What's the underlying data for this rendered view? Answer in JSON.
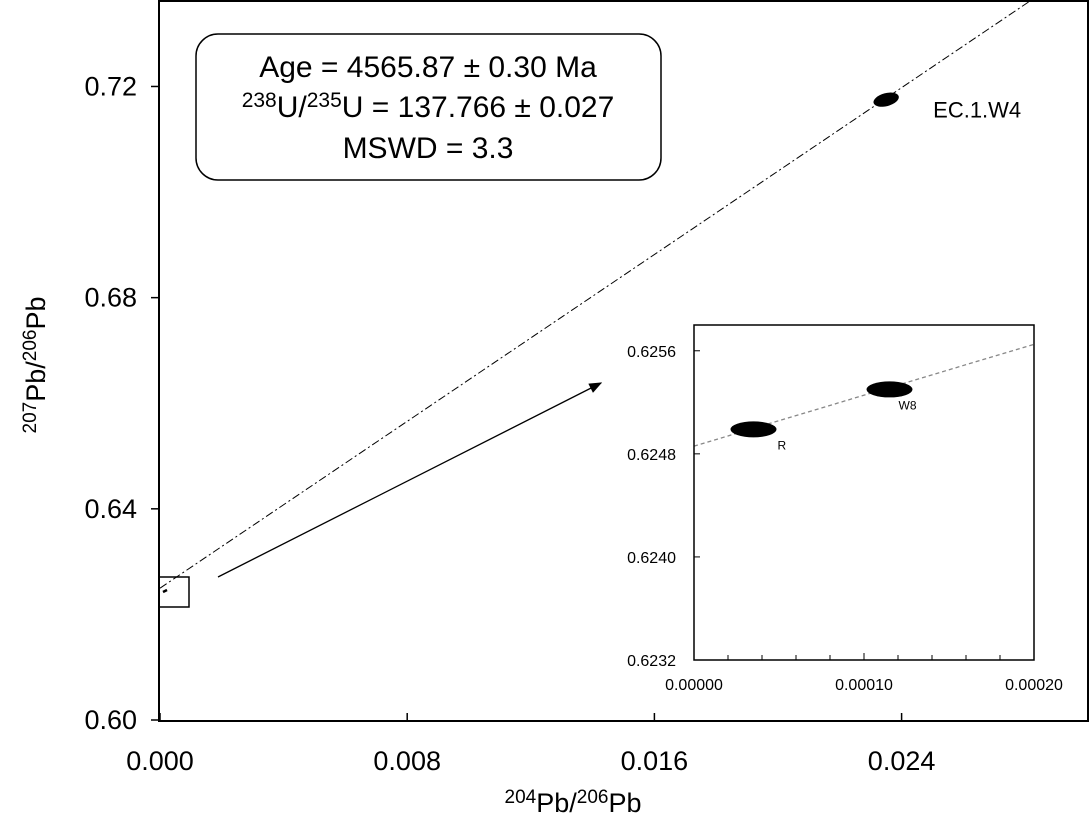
{
  "chart_data": [
    {
      "type": "scatter",
      "title": "",
      "xlabel": "²⁰⁴Pb/²⁰⁶Pb",
      "ylabel": "²⁰⁷Pb/²⁰⁶Pb",
      "xlim": [
        0.0,
        0.03
      ],
      "ylim": [
        0.6,
        0.736
      ],
      "xticks": [
        0.0,
        0.008,
        0.016,
        0.024
      ],
      "xtick_labels": [
        "0.000",
        "0.008",
        "0.016",
        "0.024"
      ],
      "yticks": [
        0.6,
        0.64,
        0.68,
        0.72
      ],
      "ytick_labels": [
        "0.60",
        "0.64",
        "0.68",
        "0.72"
      ],
      "points": [
        {
          "label": "EC.1.W4",
          "x": 0.0235,
          "y": 0.7175
        }
      ],
      "isochron": {
        "intercept": 0.62497,
        "slope": 3.95,
        "style": "dash-dot"
      },
      "annotation": {
        "age": "Age = 4565.87 ± 0.30 Ma",
        "ratio_sup1": "238",
        "ratio_mid": "U/",
        "ratio_sup2": "235",
        "ratio_tail": "U = 137.766 ± 0.027",
        "mswd": "MSWD = 3.3"
      },
      "axis_titles": {
        "x_sup1": "204",
        "x_mid": "Pb/",
        "x_sup2": "206",
        "x_tail": "Pb",
        "y_sup1": "207",
        "y_mid": "Pb/",
        "y_sup2": "206",
        "y_tail": "Pb"
      },
      "grid": false
    },
    {
      "type": "scatter",
      "title": "",
      "xlabel": "",
      "ylabel": "",
      "xlim": [
        0.0,
        0.0002
      ],
      "ylim": [
        0.6232,
        0.6258
      ],
      "xticks": [
        0.0,
        0.0001,
        0.0002
      ],
      "xtick_labels": [
        "0.00000",
        "0.00010",
        "0.00020"
      ],
      "x_minor_ticks": [
        2e-05,
        4e-05,
        6e-05,
        8e-05,
        0.00012,
        0.00014,
        0.00016,
        0.00018
      ],
      "yticks": [
        0.6232,
        0.624,
        0.6248,
        0.6256
      ],
      "ytick_labels": [
        "0.6232",
        "0.6240",
        "0.6248",
        "0.6256"
      ],
      "points": [
        {
          "label": "R",
          "x": 3.5e-05,
          "y": 0.62499
        },
        {
          "label": "W8",
          "x": 0.000115,
          "y": 0.6253
        }
      ],
      "isochron": {
        "intercept": 0.62486,
        "slope": 3.95,
        "style": "dashed"
      },
      "grid": false
    }
  ]
}
